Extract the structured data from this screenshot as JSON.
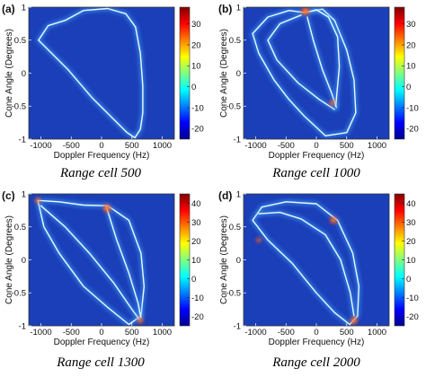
{
  "colors": {
    "background": "#1a3fb8",
    "ridge_low": "#49a8ff",
    "ridge_high": "#e8fbff",
    "hot": "#ff3a10",
    "colormap": [
      "#00008f",
      "#0000ff",
      "#0080ff",
      "#00ffff",
      "#80ff80",
      "#ffff00",
      "#ff8000",
      "#ff0000",
      "#800000"
    ]
  },
  "chart_data": [
    {
      "type": "heatmap",
      "panel_label": "(a)",
      "caption": "Range cell 500",
      "xlabel": "Doppler Frequency (Hz)",
      "ylabel": "Cone Angle (Degrees)",
      "xlim": [
        -1200,
        1200
      ],
      "ylim": [
        -1,
        1
      ],
      "x_ticks": [
        -1000,
        -500,
        0,
        500,
        1000
      ],
      "y_ticks": [
        1,
        0.5,
        0,
        -0.5,
        -1
      ],
      "colorbar": {
        "ticks": [
          30,
          20,
          10,
          0,
          -10,
          -20
        ],
        "range": [
          -25,
          38
        ]
      },
      "curves": [
        {
          "points": [
            [
              -600,
              0.8
            ],
            [
              -300,
              0.95
            ],
            [
              100,
              0.98
            ],
            [
              400,
              0.9
            ],
            [
              560,
              0.7
            ],
            [
              640,
              0.3
            ],
            [
              680,
              -0.2
            ],
            [
              680,
              -0.6
            ],
            [
              640,
              -0.85
            ],
            [
              550,
              -0.98
            ],
            [
              420,
              -0.9
            ],
            [
              200,
              -0.7
            ],
            [
              -150,
              -0.38
            ],
            [
              -550,
              0.05
            ],
            [
              -1040,
              0.5
            ],
            [
              -880,
              0.72
            ],
            [
              -600,
              0.8
            ]
          ]
        }
      ],
      "hotspots": []
    },
    {
      "type": "heatmap",
      "panel_label": "(b)",
      "caption": "Range cell 1000",
      "xlabel": "Doppler Frequency (Hz)",
      "ylabel": "Cone Angle (Degrees)",
      "xlim": [
        -1200,
        1200
      ],
      "ylim": [
        -1,
        1
      ],
      "x_ticks": [
        -1000,
        -500,
        0,
        500,
        1000
      ],
      "y_ticks": [
        1,
        0.5,
        0,
        -0.5,
        -1
      ],
      "colorbar": {
        "ticks": [
          30,
          20,
          10,
          0,
          -10,
          -20
        ],
        "range": [
          -25,
          38
        ]
      },
      "curves": [
        {
          "points": [
            [
              -200,
              0.92
            ],
            [
              -450,
              0.95
            ],
            [
              -800,
              0.85
            ],
            [
              -1050,
              0.6
            ],
            [
              -950,
              0.3
            ],
            [
              -700,
              -0.1
            ],
            [
              -450,
              -0.4
            ],
            [
              -200,
              -0.65
            ],
            [
              150,
              -0.95
            ],
            [
              500,
              -0.9
            ],
            [
              650,
              -0.6
            ],
            [
              620,
              -0.1
            ],
            [
              500,
              0.35
            ],
            [
              300,
              0.8
            ],
            [
              100,
              0.97
            ],
            [
              -200,
              0.92
            ]
          ]
        },
        {
          "points": [
            [
              -250,
              0.88
            ],
            [
              -600,
              0.75
            ],
            [
              -800,
              0.5
            ],
            [
              -650,
              0.2
            ],
            [
              -300,
              -0.15
            ],
            [
              50,
              -0.4
            ],
            [
              300,
              -0.55
            ]
          ]
        },
        {
          "points": [
            [
              -150,
              0.85
            ],
            [
              -50,
              0.5
            ],
            [
              100,
              0.05
            ],
            [
              250,
              -0.3
            ],
            [
              330,
              -0.52
            ]
          ]
        },
        {
          "points": [
            [
              -120,
              0.93
            ],
            [
              0,
              0.96
            ],
            [
              200,
              0.85
            ],
            [
              350,
              0.55
            ],
            [
              380,
              0.1
            ],
            [
              340,
              -0.3
            ],
            [
              320,
              -0.5
            ]
          ]
        }
      ],
      "hotspots": [
        [
          -180,
          0.94,
          1.0
        ],
        [
          260,
          -0.45,
          0.5
        ]
      ]
    },
    {
      "type": "heatmap",
      "panel_label": "(c)",
      "caption": "Range cell 1300",
      "xlabel": "Doppler Frequency (Hz)",
      "ylabel": "Cone Angle (Degrees)",
      "xlim": [
        -1200,
        1200
      ],
      "ylim": [
        -1,
        1
      ],
      "x_ticks": [
        -1000,
        -500,
        0,
        500,
        1000
      ],
      "y_ticks": [
        1,
        0.5,
        0,
        -0.5,
        -1
      ],
      "colorbar": {
        "ticks": [
          40,
          30,
          20,
          10,
          0,
          -10,
          -20
        ],
        "range": [
          -25,
          45
        ]
      },
      "curves": [
        {
          "points": [
            [
              -1050,
              0.9
            ],
            [
              -700,
              0.88
            ],
            [
              -300,
              0.83
            ],
            [
              100,
              0.82
            ],
            [
              450,
              0.6
            ],
            [
              650,
              0.1
            ],
            [
              700,
              -0.4
            ],
            [
              650,
              -0.85
            ],
            [
              450,
              -0.98
            ],
            [
              100,
              -0.72
            ],
            [
              -300,
              -0.4
            ],
            [
              -700,
              0.1
            ],
            [
              -950,
              0.5
            ],
            [
              -1050,
              0.9
            ]
          ]
        },
        {
          "points": [
            [
              -1000,
              0.82
            ],
            [
              -600,
              0.5
            ],
            [
              -200,
              0.1
            ],
            [
              200,
              -0.35
            ],
            [
              500,
              -0.75
            ],
            [
              620,
              -0.9
            ]
          ]
        },
        {
          "points": [
            [
              80,
              0.8
            ],
            [
              250,
              0.3
            ],
            [
              450,
              -0.2
            ],
            [
              600,
              -0.65
            ],
            [
              650,
              -0.88
            ]
          ]
        }
      ],
      "hotspots": [
        [
          90,
          0.78,
          0.9
        ],
        [
          640,
          -0.92,
          0.6
        ],
        [
          -1050,
          0.9,
          0.5
        ]
      ]
    },
    {
      "type": "heatmap",
      "panel_label": "(d)",
      "caption": "Range cell 2000",
      "xlabel": "Doppler Frequency (Hz)",
      "ylabel": "Cone Angle (Degrees)",
      "xlim": [
        -1200,
        1200
      ],
      "ylim": [
        -1,
        1
      ],
      "x_ticks": [
        -1000,
        -500,
        0,
        500,
        1000
      ],
      "y_ticks": [
        1,
        0.5,
        0,
        -0.5,
        -1
      ],
      "colorbar": {
        "ticks": [
          40,
          30,
          20,
          10,
          0,
          -10,
          -20
        ],
        "range": [
          -25,
          45
        ]
      },
      "curves": [
        {
          "points": [
            [
              -1050,
              0.6
            ],
            [
              -900,
              0.8
            ],
            [
              -500,
              0.88
            ],
            [
              0,
              0.85
            ],
            [
              350,
              0.6
            ],
            [
              600,
              0.1
            ],
            [
              700,
              -0.4
            ],
            [
              680,
              -0.85
            ],
            [
              550,
              -0.98
            ],
            [
              300,
              -0.8
            ],
            [
              0,
              -0.5
            ],
            [
              -400,
              -0.05
            ],
            [
              -800,
              0.3
            ],
            [
              -1050,
              0.6
            ]
          ]
        },
        {
          "points": [
            [
              -950,
              0.7
            ],
            [
              -600,
              0.72
            ],
            [
              -250,
              0.62
            ],
            [
              150,
              0.38
            ],
            [
              400,
              0.0
            ],
            [
              560,
              -0.5
            ],
            [
              620,
              -0.85
            ]
          ]
        }
      ],
      "hotspots": [
        [
          280,
          0.6,
          0.8
        ],
        [
          620,
          -0.92,
          0.8
        ],
        [
          -950,
          0.3,
          0.4
        ]
      ]
    }
  ]
}
